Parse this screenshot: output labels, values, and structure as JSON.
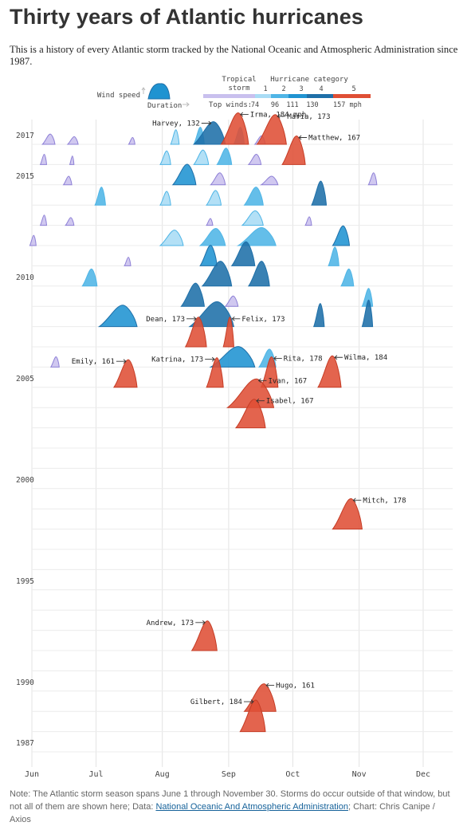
{
  "header": {
    "title": "Thirty years of Atlantic hurricanes",
    "subtitle": "This is a history of every Atlantic storm tracked by the National Oceanic and Atmospheric Administration since 1987."
  },
  "legend": {
    "wind_speed": "Wind speed",
    "duration": "Duration",
    "top_winds": "Top winds:",
    "tropical_storm": "Tropical\nstorm",
    "hurricane_category": "Hurricane category",
    "category_numbers": [
      "1",
      "2",
      "3",
      "4",
      "5"
    ],
    "thresholds": [
      "74",
      "96",
      "111",
      "130",
      "157 mph"
    ]
  },
  "colors": {
    "ts": "#c9c0ee",
    "c1": "#a9dcf5",
    "c2": "#4fb5e6",
    "c3": "#1f93d1",
    "c4": "#1e6fa8",
    "c5": "#df4f35",
    "grid": "#e3e3e3",
    "axis_text": "#444"
  },
  "chart_data": {
    "type": "area",
    "title": "Thirty years of Atlantic hurricanes",
    "x_axis": [
      "Jun",
      "Jul",
      "Aug",
      "Sep",
      "Oct",
      "Nov",
      "Dec"
    ],
    "xlim": [
      "May 31",
      "Dec 20"
    ],
    "year_labels": [
      "2017",
      "2015",
      "2010",
      "2005",
      "2000",
      "1995",
      "1990",
      "1987"
    ],
    "y_axis": "season (one row per year)",
    "wind_unit": "mph",
    "category_thresholds_mph": [
      74,
      96,
      111,
      130,
      157
    ],
    "labeled_storms": [
      {
        "year": 2017,
        "name": "Harvey",
        "peak_mph": 132,
        "start": "Aug 17",
        "end": "Sep 1"
      },
      {
        "year": 2017,
        "name": "Irma",
        "peak_mph": 184,
        "start": "Aug 30",
        "end": "Sep 12"
      },
      {
        "year": 2017,
        "name": "Maria",
        "peak_mph": 173,
        "start": "Sep 16",
        "end": "Sep 30"
      },
      {
        "year": 2016,
        "name": "Matthew",
        "peak_mph": 167,
        "start": "Sep 28",
        "end": "Oct 9"
      },
      {
        "year": 2007,
        "name": "Dean",
        "peak_mph": 173,
        "start": "Aug 13",
        "end": "Aug 23"
      },
      {
        "year": 2007,
        "name": "Felix",
        "peak_mph": 173,
        "start": "Aug 31",
        "end": "Sep 5"
      },
      {
        "year": 2005,
        "name": "Emily",
        "peak_mph": 161,
        "start": "Jul 10",
        "end": "Jul 21"
      },
      {
        "year": 2005,
        "name": "Katrina",
        "peak_mph": 173,
        "start": "Aug 23",
        "end": "Aug 31"
      },
      {
        "year": 2005,
        "name": "Rita",
        "peak_mph": 178,
        "start": "Sep 18",
        "end": "Sep 26"
      },
      {
        "year": 2005,
        "name": "Wilma",
        "peak_mph": 184,
        "start": "Oct 15",
        "end": "Oct 26"
      },
      {
        "year": 2004,
        "name": "Ivan",
        "peak_mph": 167,
        "start": "Sep 2",
        "end": "Sep 24"
      },
      {
        "year": 2003,
        "name": "Isabel",
        "peak_mph": 167,
        "start": "Sep 6",
        "end": "Sep 20"
      },
      {
        "year": 1998,
        "name": "Mitch",
        "peak_mph": 178,
        "start": "Oct 22",
        "end": "Nov 5"
      },
      {
        "year": 1992,
        "name": "Andrew",
        "peak_mph": 173,
        "start": "Aug 16",
        "end": "Aug 28"
      },
      {
        "year": 1989,
        "name": "Hugo",
        "peak_mph": 161,
        "start": "Sep 10",
        "end": "Sep 25"
      },
      {
        "year": 1988,
        "name": "Gilbert",
        "peak_mph": 184,
        "start": "Sep 8",
        "end": "Sep 20"
      }
    ],
    "other_storms_per_year": [
      {
        "year": 2017,
        "storms": [
          {
            "start": "Jun 6",
            "end": "Jun 12",
            "peak_mph": 60
          },
          {
            "start": "Jun 18",
            "end": "Jun 23",
            "peak_mph": 45
          },
          {
            "start": "Jul 17",
            "end": "Jul 20",
            "peak_mph": 40
          },
          {
            "start": "Aug 6",
            "end": "Aug 10",
            "peak_mph": 85
          },
          {
            "start": "Aug 17",
            "end": "Aug 22",
            "peak_mph": 100
          },
          {
            "start": "Sep 5",
            "end": "Sep 10",
            "peak_mph": 100
          },
          {
            "start": "Sep 15",
            "end": "Sep 20",
            "peak_mph": 50
          }
        ]
      },
      {
        "year": 2016,
        "storms": [
          {
            "start": "Jun 5",
            "end": "Jun 8",
            "peak_mph": 60
          },
          {
            "start": "Jun 19",
            "end": "Jun 21",
            "peak_mph": 50
          },
          {
            "start": "Aug 1",
            "end": "Aug 6",
            "peak_mph": 80
          },
          {
            "start": "Aug 17",
            "end": "Aug 24",
            "peak_mph": 85
          },
          {
            "start": "Aug 28",
            "end": "Sep 4",
            "peak_mph": 96
          },
          {
            "start": "Sep 12",
            "end": "Sep 18",
            "peak_mph": 60
          }
        ]
      },
      {
        "year": 2015,
        "storms": [
          {
            "start": "Jun 16",
            "end": "Jun 20",
            "peak_mph": 50
          },
          {
            "start": "Aug 7",
            "end": "Aug 18",
            "peak_mph": 120
          },
          {
            "start": "Aug 25",
            "end": "Sep 1",
            "peak_mph": 70
          },
          {
            "start": "Sep 18",
            "end": "Sep 26",
            "peak_mph": 50
          },
          {
            "start": "Nov 8",
            "end": "Nov 12",
            "peak_mph": 70
          }
        ]
      },
      {
        "year": 2014,
        "storms": [
          {
            "start": "Jul 1",
            "end": "Jul 6",
            "peak_mph": 105
          },
          {
            "start": "Aug 1",
            "end": "Aug 6",
            "peak_mph": 80
          },
          {
            "start": "Aug 23",
            "end": "Aug 30",
            "peak_mph": 85
          },
          {
            "start": "Sep 10",
            "end": "Sep 19",
            "peak_mph": 105
          },
          {
            "start": "Oct 12",
            "end": "Oct 19",
            "peak_mph": 140
          }
        ]
      },
      {
        "year": 2013,
        "storms": [
          {
            "start": "Jun 5",
            "end": "Jun 8",
            "peak_mph": 60
          },
          {
            "start": "Jun 17",
            "end": "Jun 21",
            "peak_mph": 45
          },
          {
            "start": "Aug 23",
            "end": "Aug 26",
            "peak_mph": 40
          },
          {
            "start": "Sep 9",
            "end": "Sep 19",
            "peak_mph": 85
          },
          {
            "start": "Oct 9",
            "end": "Oct 12",
            "peak_mph": 50
          }
        ]
      },
      {
        "year": 2012,
        "storms": [
          {
            "start": "May 31",
            "end": "Jun 3",
            "peak_mph": 60
          },
          {
            "start": "Aug 1",
            "end": "Aug 12",
            "peak_mph": 90
          },
          {
            "start": "Aug 20",
            "end": "Sep 1",
            "peak_mph": 100
          },
          {
            "start": "Sep 7",
            "end": "Sep 25",
            "peak_mph": 105
          },
          {
            "start": "Oct 22",
            "end": "Oct 30",
            "peak_mph": 115
          }
        ]
      },
      {
        "year": 2011,
        "storms": [
          {
            "start": "Jul 15",
            "end": "Jul 18",
            "peak_mph": 50
          },
          {
            "start": "Aug 20",
            "end": "Aug 28",
            "peak_mph": 120
          },
          {
            "start": "Sep 4",
            "end": "Sep 15",
            "peak_mph": 140
          },
          {
            "start": "Oct 20",
            "end": "Oct 25",
            "peak_mph": 110
          }
        ]
      },
      {
        "year": 2010,
        "storms": [
          {
            "start": "Jun 25",
            "end": "Jul 2",
            "peak_mph": 100
          },
          {
            "start": "Aug 21",
            "end": "Sep 4",
            "peak_mph": 145
          },
          {
            "start": "Sep 12",
            "end": "Sep 22",
            "peak_mph": 145
          },
          {
            "start": "Oct 26",
            "end": "Nov 1",
            "peak_mph": 100
          }
        ]
      },
      {
        "year": 2009,
        "storms": [
          {
            "start": "Aug 11",
            "end": "Aug 22",
            "peak_mph": 135
          },
          {
            "start": "Sep 1",
            "end": "Sep 7",
            "peak_mph": 60
          },
          {
            "start": "Nov 5",
            "end": "Nov 10",
            "peak_mph": 105
          }
        ]
      },
      {
        "year": 2008,
        "storms": [
          {
            "start": "Jul 3",
            "end": "Jul 21",
            "peak_mph": 125
          },
          {
            "start": "Aug 15",
            "end": "Sep 5",
            "peak_mph": 145
          },
          {
            "start": "Oct 13",
            "end": "Oct 18",
            "peak_mph": 135
          },
          {
            "start": "Nov 5",
            "end": "Nov 10",
            "peak_mph": 155
          }
        ]
      },
      {
        "year": 2006,
        "storms": [
          {
            "start": "Jun 10",
            "end": "Jun 14",
            "peak_mph": 60
          },
          {
            "start": "Aug 25",
            "end": "Sep 15",
            "peak_mph": 120
          },
          {
            "start": "Sep 17",
            "end": "Sep 25",
            "peak_mph": 105
          }
        ]
      }
    ]
  }
}
